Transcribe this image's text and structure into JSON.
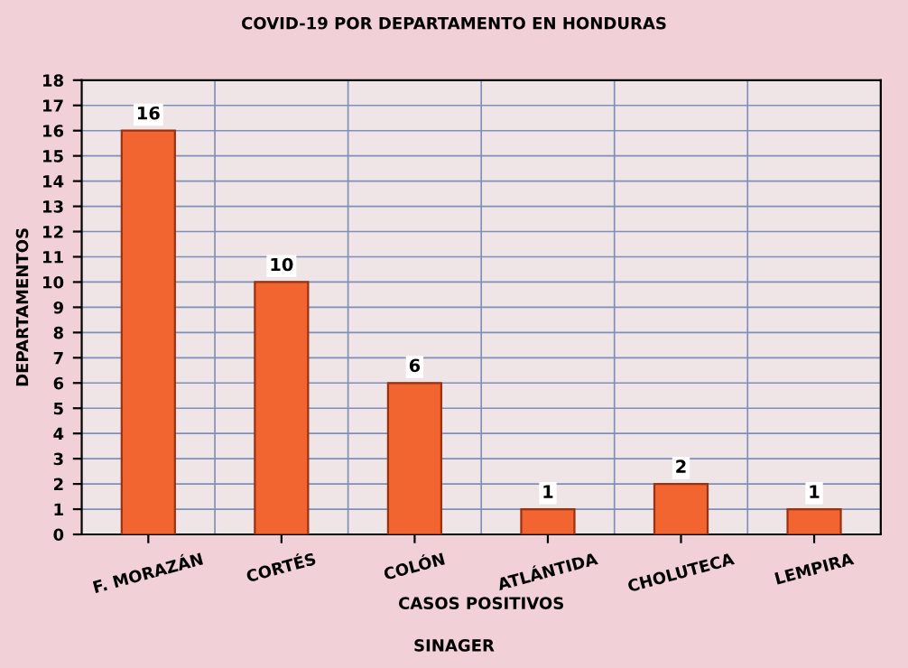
{
  "chart_data": {
    "type": "bar",
    "title": "COVID-19 POR DEPARTAMENTO EN HONDURAS",
    "xlabel": "CASOS POSITIVOS",
    "ylabel": "DEPARTAMENTOS",
    "annotations": [
      "SINAGER"
    ],
    "categories": [
      "F. MORAZÁN",
      "CORTÉS",
      "COLÓN",
      "ATLÁNTIDA",
      "CHOLUTECA",
      "LEMPIRA"
    ],
    "values": [
      16,
      10,
      6,
      1,
      2,
      1
    ],
    "color": "#f26430",
    "ylim": [
      0,
      18
    ],
    "yticks": [
      0,
      1,
      2,
      3,
      4,
      5,
      6,
      7,
      8,
      9,
      10,
      11,
      12,
      13,
      14,
      15,
      16,
      17,
      18
    ],
    "grid": true,
    "data_labels": true
  }
}
